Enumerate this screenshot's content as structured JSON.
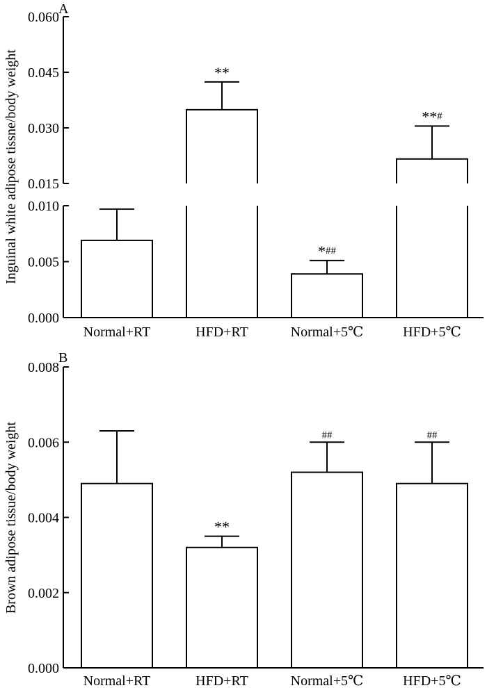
{
  "chart_data": [
    {
      "type": "bar",
      "panel": "A",
      "ylabel": "Inguinal white adipose tissne/body weight",
      "axis_break": true,
      "ylim_lower": [
        0,
        0.01
      ],
      "ylim_upper": [
        0.015,
        0.06
      ],
      "yticks_lower": [
        "0.000",
        "0.005",
        "0.010"
      ],
      "yticks_upper": [
        "0.015",
        "0.030",
        "0.045",
        "0.060"
      ],
      "categories": [
        "Normal+RT",
        "HFD+RT",
        "Normal+5℃",
        "HFD+5℃"
      ],
      "values": [
        0.0069,
        0.0349,
        0.0039,
        0.0216
      ],
      "errors": [
        0.0028,
        0.0075,
        0.0012,
        0.0089
      ],
      "annotations": [
        {
          "stars": "",
          "hashes": ""
        },
        {
          "stars": "**",
          "hashes": ""
        },
        {
          "stars": "*",
          "hashes": "##"
        },
        {
          "stars": "**",
          "hashes": "#"
        }
      ]
    },
    {
      "type": "bar",
      "panel": "B",
      "ylabel": "Brown adipose tissue/body weight",
      "axis_break": false,
      "ylim": [
        0,
        0.008
      ],
      "yticks": [
        "0.000",
        "0.002",
        "0.004",
        "0.006",
        "0.008"
      ],
      "categories": [
        "Normal+RT",
        "HFD+RT",
        "Normal+5℃",
        "HFD+5℃"
      ],
      "values": [
        0.0049,
        0.0032,
        0.0052,
        0.0049
      ],
      "errors": [
        0.0014,
        0.0003,
        0.0008,
        0.0011
      ],
      "annotations": [
        {
          "stars": "",
          "hashes": ""
        },
        {
          "stars": "**",
          "hashes": ""
        },
        {
          "stars": "",
          "hashes": "##"
        },
        {
          "stars": "",
          "hashes": "##"
        }
      ]
    }
  ]
}
